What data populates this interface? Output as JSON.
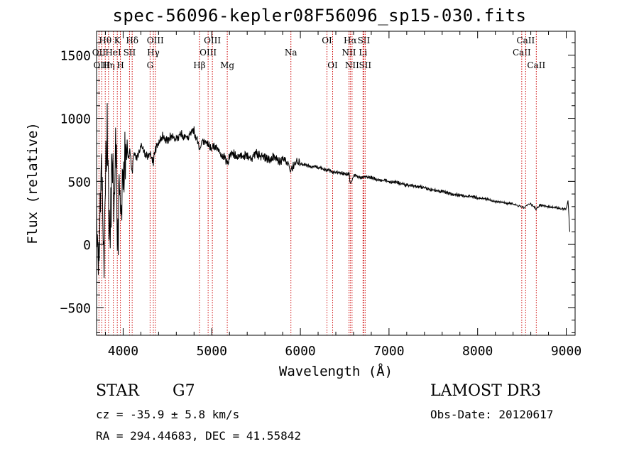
{
  "title": "spec-56096-kepler08F56096_sp15-030.fits",
  "info": {
    "class": "STAR",
    "subclass": "G7",
    "survey": "LAMOST DR3",
    "cz": "cz = -35.9 ± 5.8 km/s",
    "obs_date": "Obs-Date: 20120617",
    "radec": "RA = 294.44683, DEC =  41.55842"
  },
  "colors": {
    "spectrum": "#000000",
    "line_marker": "#cc0000",
    "axis": "#000000"
  },
  "chart_data": {
    "type": "line",
    "title": "spec-56096-kepler08F56096_sp15-030.fits",
    "xlabel": "Wavelength (Å)",
    "ylabel": "Flux (relative)",
    "xlim": [
      3700,
      9100
    ],
    "ylim": [
      -720,
      1690
    ],
    "xticks": [
      4000,
      5000,
      6000,
      7000,
      8000,
      9000
    ],
    "yticks": [
      -500,
      0,
      500,
      1000,
      1500
    ],
    "series": [
      {
        "name": "flux",
        "x": [
          3700,
          3720,
          3740,
          3760,
          3780,
          3800,
          3820,
          3840,
          3860,
          3880,
          3900,
          3920,
          3940,
          3960,
          3980,
          4000,
          4020,
          4040,
          4060,
          4080,
          4100,
          4120,
          4150,
          4200,
          4250,
          4300,
          4340,
          4360,
          4400,
          4450,
          4500,
          4550,
          4600,
          4650,
          4700,
          4750,
          4800,
          4830,
          4861,
          4900,
          4950,
          5000,
          5050,
          5100,
          5150,
          5175,
          5200,
          5250,
          5300,
          5350,
          5400,
          5450,
          5500,
          5550,
          5600,
          5650,
          5700,
          5750,
          5800,
          5850,
          5893,
          5950,
          6000,
          6050,
          6100,
          6150,
          6200,
          6250,
          6300,
          6350,
          6400,
          6450,
          6500,
          6550,
          6563,
          6600,
          6650,
          6700,
          6750,
          6800,
          6900,
          7000,
          7100,
          7200,
          7300,
          7400,
          7500,
          7600,
          7700,
          7800,
          7900,
          8000,
          8100,
          8200,
          8300,
          8400,
          8450,
          8498,
          8542,
          8600,
          8662,
          8700,
          8800,
          8900,
          8950,
          9000,
          9020,
          9040
        ],
        "y": [
          200,
          -100,
          300,
          600,
          -150,
          400,
          1050,
          100,
          250,
          700,
          300,
          800,
          -50,
          500,
          200,
          550,
          650,
          780,
          680,
          740,
          560,
          720,
          680,
          790,
          700,
          720,
          650,
          740,
          810,
          860,
          820,
          870,
          830,
          880,
          850,
          870,
          900,
          830,
          780,
          820,
          800,
          760,
          780,
          720,
          690,
          640,
          700,
          720,
          690,
          700,
          710,
          680,
          720,
          700,
          690,
          670,
          700,
          660,
          670,
          650,
          590,
          650,
          640,
          630,
          620,
          620,
          610,
          600,
          590,
          580,
          570,
          570,
          560,
          560,
          480,
          550,
          540,
          530,
          540,
          530,
          510,
          500,
          490,
          470,
          460,
          450,
          430,
          420,
          400,
          390,
          380,
          370,
          360,
          340,
          330,
          320,
          310,
          290,
          300,
          320,
          280,
          310,
          300,
          290,
          280,
          280,
          350,
          100
        ]
      }
    ],
    "line_markers": [
      {
        "label": "Hθ",
        "x": 3798,
        "row": 0
      },
      {
        "label": "OII",
        "x": 3727,
        "row": 1
      },
      {
        "label": "OIII",
        "x": 3760,
        "row": 2
      },
      {
        "label": "Hη",
        "x": 3835,
        "row": 2
      },
      {
        "label": "HeI",
        "x": 3889,
        "row": 1
      },
      {
        "label": "K",
        "x": 3934,
        "row": 0
      },
      {
        "label": "H",
        "x": 3969,
        "row": 2
      },
      {
        "label": "SII",
        "x": 4072,
        "row": 1
      },
      {
        "label": "Hδ",
        "x": 4102,
        "row": 0
      },
      {
        "label": "G",
        "x": 4304,
        "row": 2
      },
      {
        "label": "Hγ",
        "x": 4341,
        "row": 1
      },
      {
        "label": "OIII",
        "x": 4363,
        "row": 0
      },
      {
        "label": "Hβ",
        "x": 4861,
        "row": 2
      },
      {
        "label": "OIII",
        "x": 4959,
        "row": 1
      },
      {
        "label": "OIII",
        "x": 5007,
        "row": 0
      },
      {
        "label": "Mg",
        "x": 5175,
        "row": 2
      },
      {
        "label": "Na",
        "x": 5893,
        "row": 1
      },
      {
        "label": "OI",
        "x": 6300,
        "row": 0
      },
      {
        "label": "OI",
        "x": 6364,
        "row": 2
      },
      {
        "label": "NII",
        "x": 6548,
        "row": 1
      },
      {
        "label": "Hα",
        "x": 6563,
        "row": 0
      },
      {
        "label": "NII",
        "x": 6583,
        "row": 2
      },
      {
        "label": "Li",
        "x": 6707,
        "row": 1
      },
      {
        "label": "SII",
        "x": 6716,
        "row": 0
      },
      {
        "label": "SII",
        "x": 6731,
        "row": 2
      },
      {
        "label": "CaII",
        "x": 8498,
        "row": 1
      },
      {
        "label": "CaII",
        "x": 8542,
        "row": 0
      },
      {
        "label": "CaII",
        "x": 8662,
        "row": 2
      }
    ]
  }
}
